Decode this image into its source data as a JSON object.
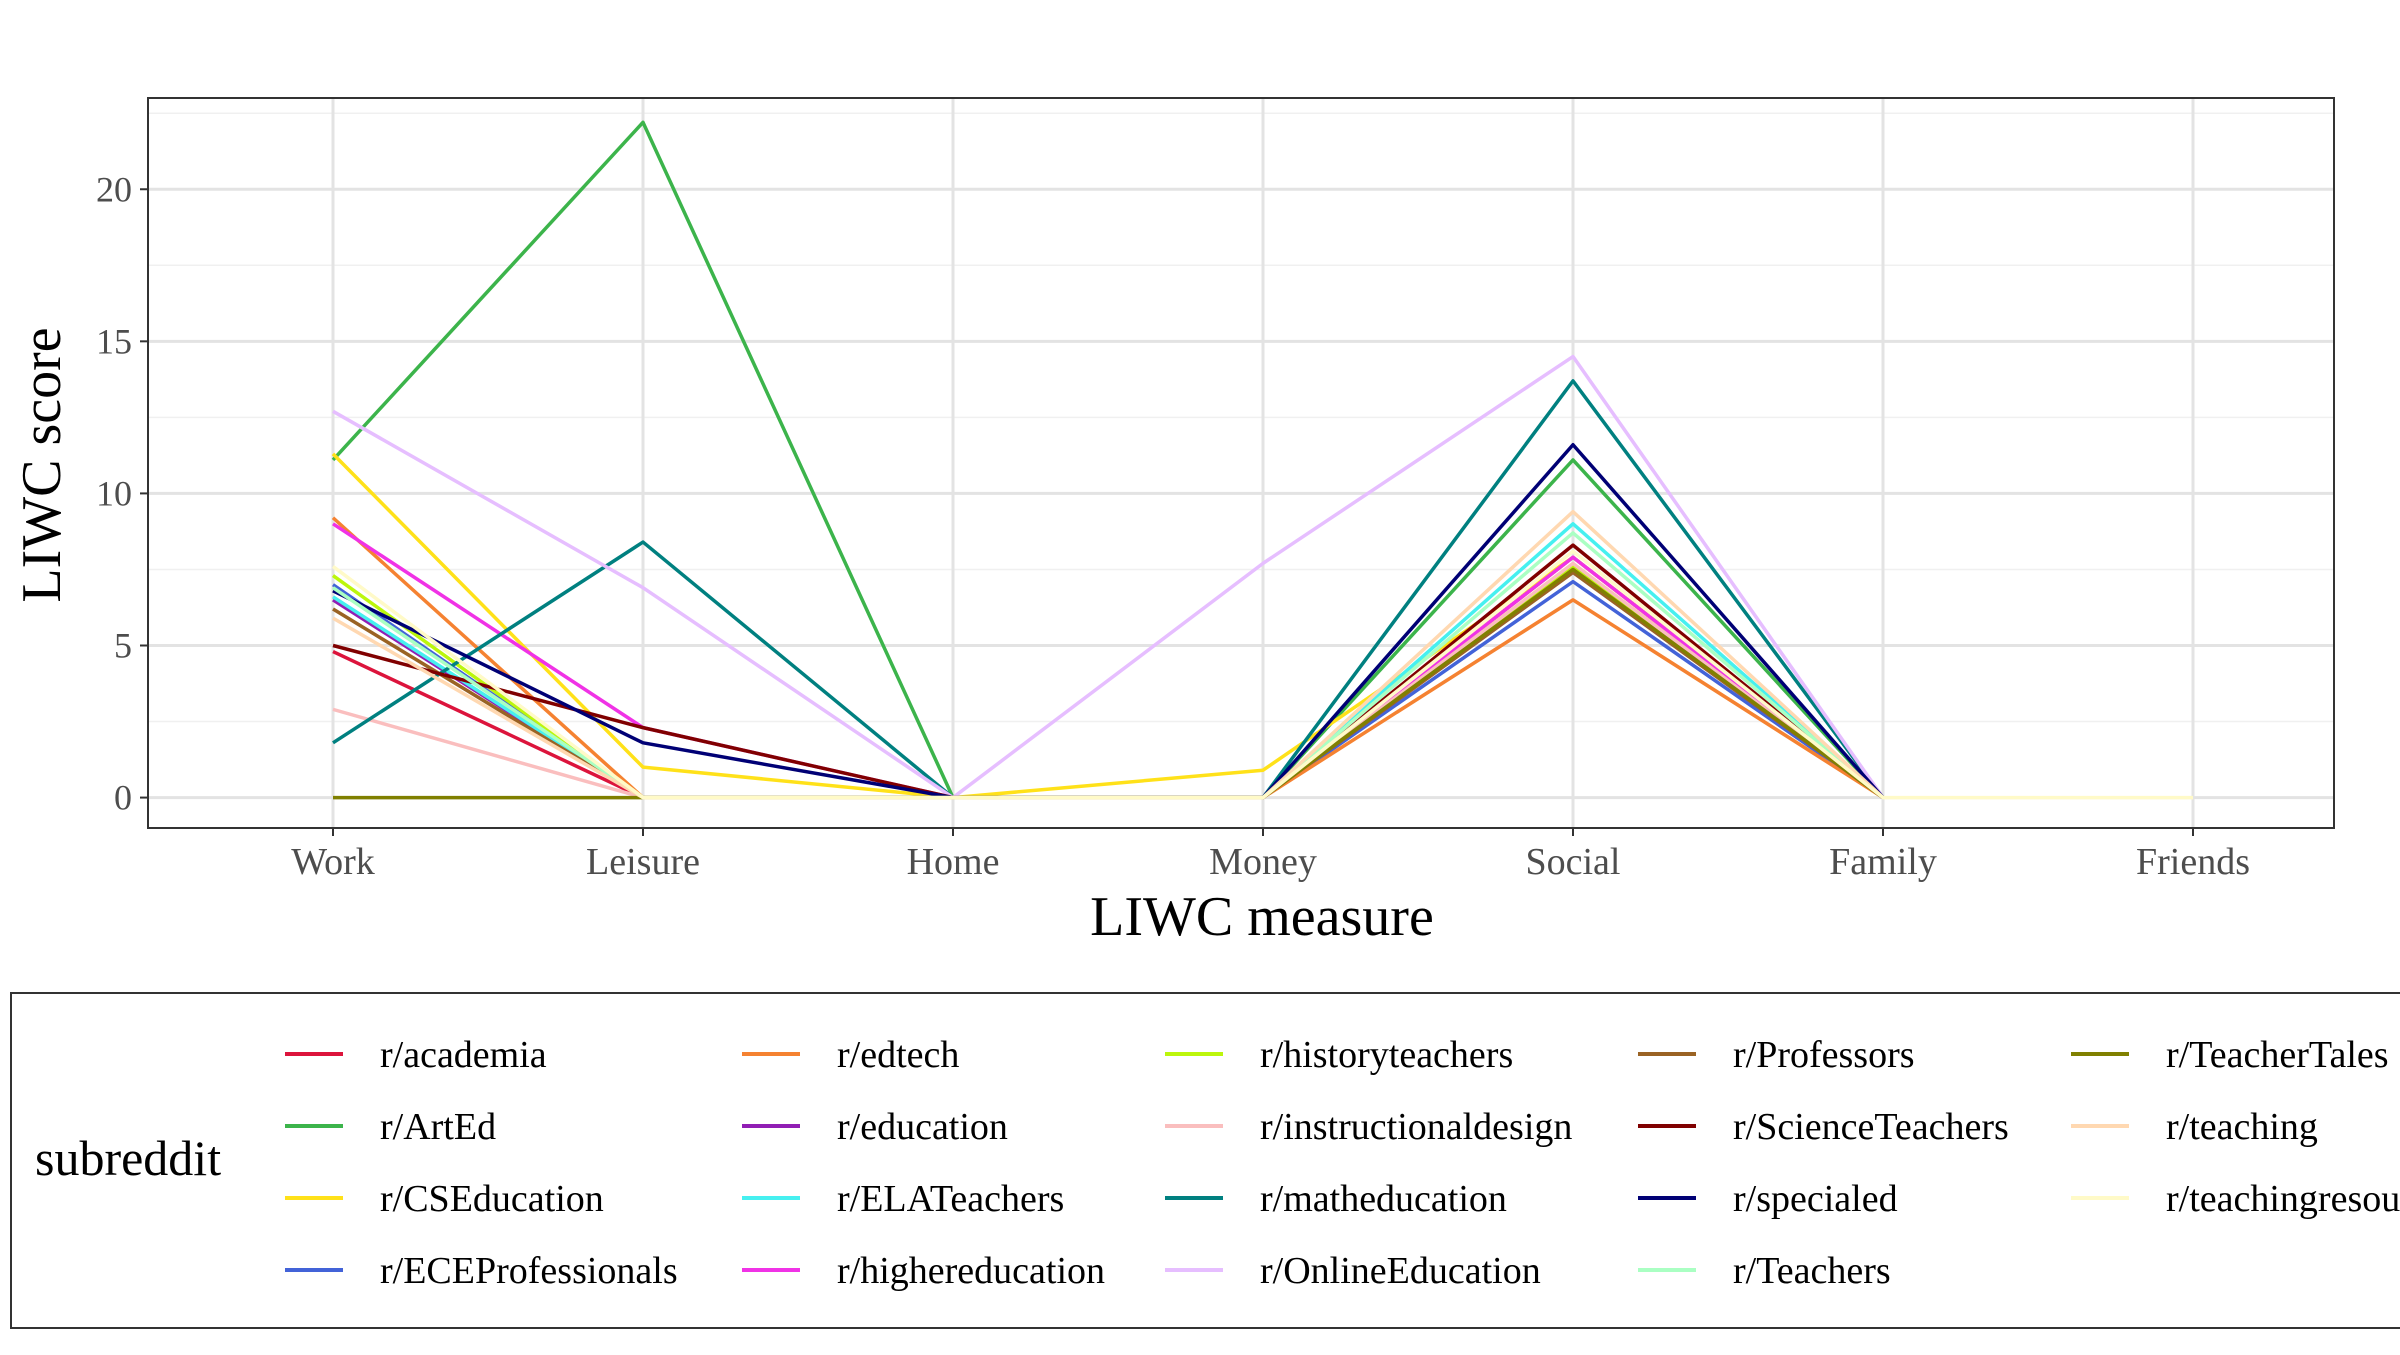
{
  "chart_data": {
    "type": "line",
    "title": "",
    "xlabel": "LIWC measure",
    "ylabel": "LIWC score",
    "categories": [
      "Work",
      "Leisure",
      "Home",
      "Money",
      "Social",
      "Family",
      "Friends"
    ],
    "ylim": [
      -1,
      23
    ],
    "yticks": [
      0,
      5,
      10,
      15,
      20
    ],
    "grid": true,
    "legend_title": "subreddit",
    "legend_position": "bottom",
    "series": [
      {
        "name": "r/academia",
        "color": "#dc143c",
        "values": [
          4.8,
          0,
          0,
          0,
          7.9,
          0,
          null
        ]
      },
      {
        "name": "r/ArtEd",
        "color": "#3cb44b",
        "values": [
          11.1,
          22.2,
          0,
          0,
          11.1,
          0,
          null
        ]
      },
      {
        "name": "r/CSEducation",
        "color": "#ffe119",
        "values": [
          11.3,
          1.0,
          0,
          0.9,
          7.9,
          0,
          null
        ]
      },
      {
        "name": "r/ECEProfessionals",
        "color": "#4363d8",
        "values": [
          7.0,
          0,
          0,
          0,
          7.1,
          0,
          null
        ]
      },
      {
        "name": "r/edtech",
        "color": "#f58231",
        "values": [
          9.2,
          0,
          0,
          0,
          6.5,
          0,
          null
        ]
      },
      {
        "name": "r/education",
        "color": "#911eb4",
        "values": [
          6.5,
          0,
          0,
          0,
          7.6,
          0,
          null
        ]
      },
      {
        "name": "r/ELATeachers",
        "color": "#46f0f0",
        "values": [
          6.6,
          0,
          0,
          0,
          9.0,
          0,
          null
        ]
      },
      {
        "name": "r/highereducation",
        "color": "#f032e6",
        "values": [
          9.0,
          2.3,
          0,
          0,
          7.9,
          0,
          null
        ]
      },
      {
        "name": "r/historyteachers",
        "color": "#bcf60c",
        "values": [
          7.3,
          0,
          0,
          0,
          7.6,
          0,
          null
        ]
      },
      {
        "name": "r/instructionaldesign",
        "color": "#fabebe",
        "values": [
          2.9,
          0,
          0,
          0,
          7.7,
          0,
          null
        ]
      },
      {
        "name": "r/matheducation",
        "color": "#008080",
        "values": [
          1.8,
          8.4,
          0,
          0,
          13.7,
          0,
          null
        ]
      },
      {
        "name": "r/OnlineEducation",
        "color": "#e6beff",
        "values": [
          12.7,
          6.9,
          0,
          7.7,
          14.5,
          0,
          null
        ]
      },
      {
        "name": "r/Professors",
        "color": "#9a6324",
        "values": [
          6.2,
          0,
          0,
          0,
          7.4,
          0,
          null
        ]
      },
      {
        "name": "r/ScienceTeachers",
        "color": "#800000",
        "values": [
          5.0,
          2.3,
          0,
          0,
          8.3,
          0,
          null
        ]
      },
      {
        "name": "r/specialed",
        "color": "#000075",
        "values": [
          6.8,
          1.8,
          0,
          0,
          11.6,
          0,
          null
        ]
      },
      {
        "name": "r/Teachers",
        "color": "#aaffc3",
        "values": [
          6.9,
          0,
          0,
          0,
          8.7,
          0,
          null
        ]
      },
      {
        "name": "r/TeacherTales",
        "color": "#808000",
        "values": [
          0,
          0,
          0,
          0,
          7.5,
          0,
          null
        ]
      },
      {
        "name": "r/teaching",
        "color": "#ffd8b1",
        "values": [
          5.9,
          0,
          0,
          0,
          9.4,
          0,
          null
        ]
      },
      {
        "name": "r/teachingresources",
        "color": "#fffac8",
        "values": [
          7.6,
          0,
          0,
          0,
          8.1,
          0,
          0
        ]
      }
    ]
  }
}
